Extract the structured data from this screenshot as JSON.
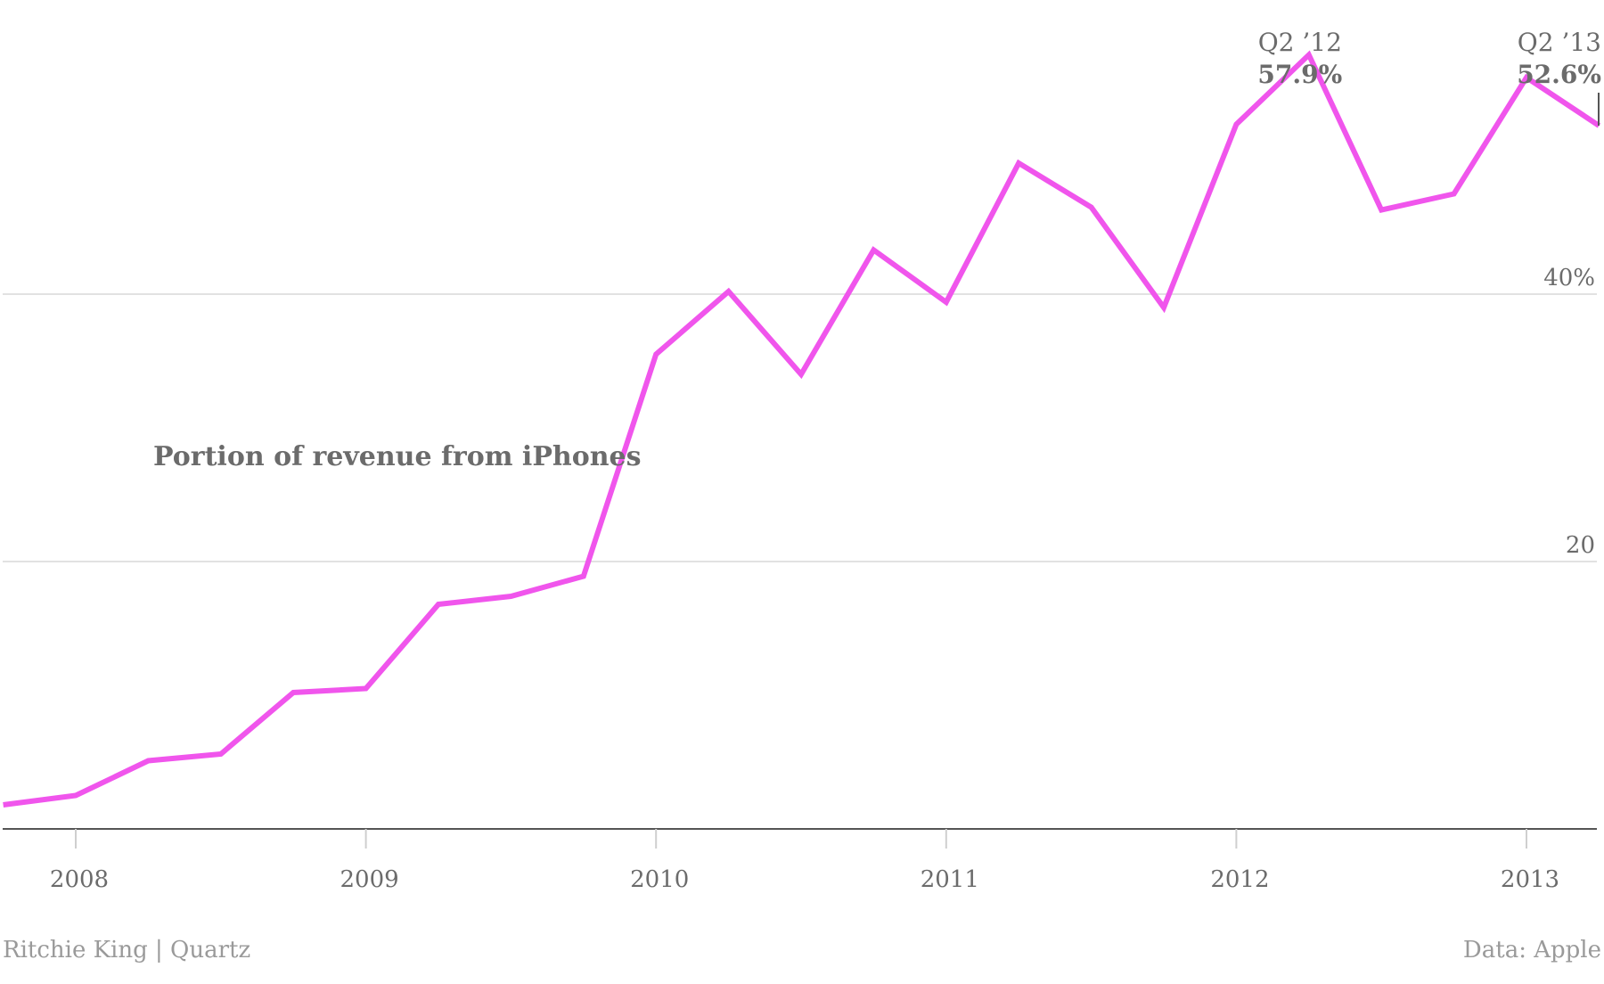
{
  "chart_data": {
    "type": "line",
    "title": "",
    "xlabel": "",
    "ylabel": "",
    "x_ticks": [
      "2008",
      "2009",
      "2010",
      "2011",
      "2012",
      "2013"
    ],
    "y_ticks": [
      {
        "value": 20,
        "label": "20"
      },
      {
        "value": 40,
        "label": "40%"
      }
    ],
    "ylim": [
      0,
      60
    ],
    "xlim": [
      2007.75,
      2013.25
    ],
    "grid": true,
    "series": [
      {
        "name": "Portion of revenue from iPhones",
        "color": "#f055ec",
        "x": [
          2007.75,
          2008.0,
          2008.25,
          2008.5,
          2008.75,
          2009.0,
          2009.25,
          2009.5,
          2009.75,
          2010.0,
          2010.25,
          2010.5,
          2010.75,
          2011.0,
          2011.25,
          2011.5,
          2011.75,
          2012.0,
          2012.25,
          2012.5,
          2012.75,
          2013.0,
          2013.25
        ],
        "values": [
          1.8,
          2.5,
          5.1,
          5.6,
          10.2,
          10.5,
          16.8,
          17.4,
          18.9,
          35.5,
          40.2,
          34.0,
          43.3,
          39.4,
          49.8,
          46.5,
          39.0,
          52.7,
          57.9,
          46.3,
          47.5,
          56.2,
          52.6
        ]
      }
    ],
    "annotations": [
      {
        "label": "Q2 ’12",
        "value_text": "57.9%",
        "x": 2012.25,
        "y": 57.9
      },
      {
        "label": "Q2 ’13",
        "value_text": "52.6%",
        "x": 2013.25,
        "y": 52.6
      }
    ]
  },
  "footer": {
    "credit": "Ritchie King | Quartz",
    "source": "Data: Apple"
  }
}
